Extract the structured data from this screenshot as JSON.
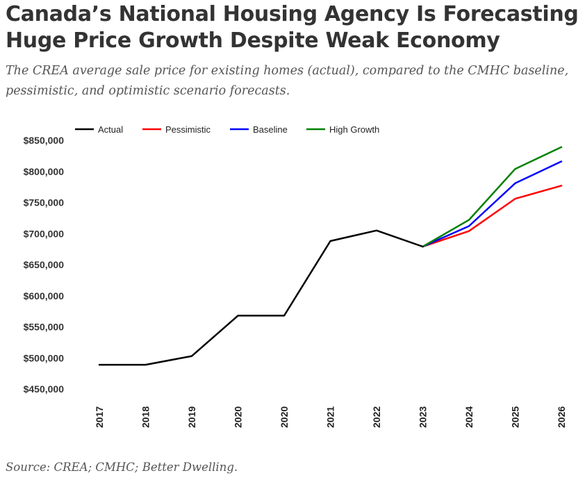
{
  "header": {
    "title": "Canada’s National Housing Agency Is Forecasting Huge Price Growth Despite Weak Economy",
    "subtitle": "The CREA average sale price for existing homes (actual), compared to the CMHC baseline, pessimistic, and optimistic scenario forecasts."
  },
  "footer": {
    "source": "Source: CREA; CMHC; Better Dwelling."
  },
  "chart_data": {
    "type": "line",
    "title": "",
    "xlabel": "",
    "ylabel": "",
    "categories": [
      "2017",
      "2018",
      "2019",
      "2020",
      "2020",
      "2021",
      "2022",
      "2023",
      "2024",
      "2025",
      "2026"
    ],
    "ylim": [
      450000,
      850000
    ],
    "yticks": [
      450000,
      500000,
      550000,
      600000,
      650000,
      700000,
      750000,
      800000,
      850000
    ],
    "ytick_labels": [
      "$450,000",
      "$500,000",
      "$550,000",
      "$600,000",
      "$650,000",
      "$700,000",
      "$750,000",
      "$800,000",
      "$850,000"
    ],
    "grid": false,
    "legend_position": "top-left",
    "series": [
      {
        "name": "Actual",
        "color": "#000000",
        "values": [
          489000,
          489000,
          503000,
          568000,
          568000,
          688000,
          705000,
          679000,
          null,
          null,
          null
        ]
      },
      {
        "name": "Pessimistic",
        "color": "#ff0000",
        "values": [
          null,
          null,
          null,
          null,
          null,
          null,
          null,
          679000,
          704000,
          756000,
          777000
        ]
      },
      {
        "name": "Baseline",
        "color": "#0000ff",
        "values": [
          null,
          null,
          null,
          null,
          null,
          null,
          null,
          679000,
          712000,
          781000,
          816000
        ]
      },
      {
        "name": "High Growth",
        "color": "#008000",
        "values": [
          null,
          null,
          null,
          null,
          null,
          null,
          null,
          679000,
          722000,
          804000,
          839000
        ]
      }
    ]
  }
}
